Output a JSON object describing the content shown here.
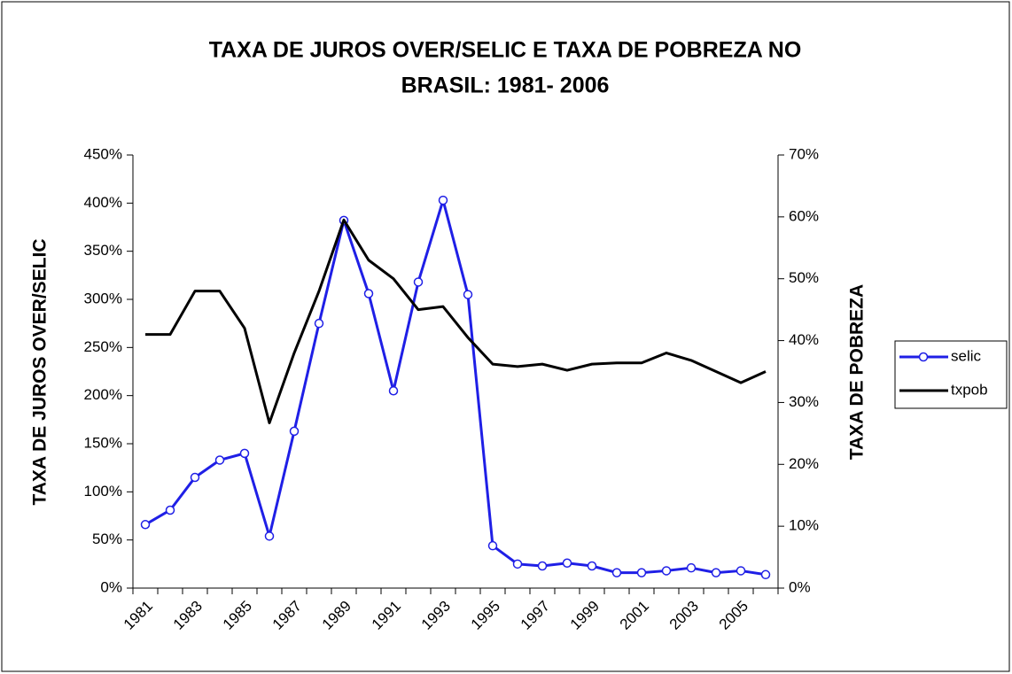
{
  "chart_data": {
    "type": "line",
    "title": [
      "TAXA DE JUROS OVER/SELIC E TAXA DE POBREZA NO",
      "BRASIL: 1981- 2006"
    ],
    "ylabel": "TAXA DE JUROS OVER/SELIC",
    "y2label": "TAXA DE POBREZA",
    "categories": [
      "1981",
      null,
      "1983",
      null,
      "1985",
      null,
      "1987",
      null,
      "1989",
      null,
      "1991",
      null,
      "1993",
      null,
      "1995",
      null,
      "1997",
      null,
      "1999",
      null,
      "2001",
      null,
      "2003",
      null,
      "2005",
      null
    ],
    "series": [
      {
        "name": "selic",
        "color": "#1f1fe6",
        "marker": "circle",
        "axis": "y",
        "values": [
          66,
          81,
          115,
          133,
          140,
          54,
          163,
          275,
          382,
          306,
          205,
          318,
          403,
          305,
          44,
          25,
          23,
          26,
          23,
          16,
          16,
          18,
          21,
          16,
          18,
          14
        ]
      },
      {
        "name": "txpob",
        "color": "#000000",
        "axis": "y2",
        "values": [
          41,
          41,
          48,
          48,
          42,
          26.7,
          38,
          48,
          59.5,
          53,
          50,
          45,
          45.5,
          40.5,
          36.2,
          35.8,
          36.2,
          35.2,
          36.2,
          36.4,
          36.4,
          38,
          36.8,
          35,
          33.2,
          35
        ]
      }
    ],
    "ylim": [
      0,
      450
    ],
    "yticks": [
      {
        "value": 0,
        "label": "0%"
      },
      {
        "value": 50,
        "label": "50%"
      },
      {
        "value": 100,
        "label": "100%"
      },
      {
        "value": 150,
        "label": "150%"
      },
      {
        "value": 200,
        "label": "200%"
      },
      {
        "value": 250,
        "label": "250%"
      },
      {
        "value": 300,
        "label": "300%"
      },
      {
        "value": 350,
        "label": "350%"
      },
      {
        "value": 400,
        "label": "400%"
      },
      {
        "value": 450,
        "label": "450%"
      }
    ],
    "y2lim": [
      0,
      70
    ],
    "y2ticks": [
      {
        "value": 0,
        "label": "0%"
      },
      {
        "value": 10,
        "label": "10%"
      },
      {
        "value": 20,
        "label": "20%"
      },
      {
        "value": 30,
        "label": "30%"
      },
      {
        "value": 40,
        "label": "40%"
      },
      {
        "value": 50,
        "label": "50%"
      },
      {
        "value": 60,
        "label": "60%"
      },
      {
        "value": 70,
        "label": "70%"
      }
    ],
    "legend": "right"
  }
}
